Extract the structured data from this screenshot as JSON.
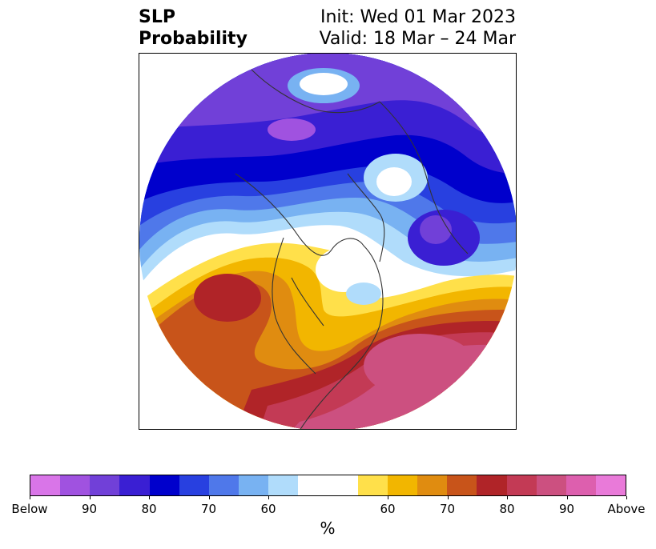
{
  "title": {
    "left_line1": "SLP",
    "left_line2": "Probability",
    "right_line1": "Init: Wed 01 Mar 2023",
    "right_line2": "Valid: 18 Mar – 24 Mar"
  },
  "map": {
    "projection": "north-polar-stereographic",
    "region": "Northern Hemisphere"
  },
  "colorbar": {
    "colors": [
      "#d975e8",
      "#a052e0",
      "#7140d8",
      "#3a1fd3",
      "#0000cc",
      "#2840e0",
      "#4f78ea",
      "#78b2f2",
      "#b0dcfb",
      "#ffffff",
      "#ffffff",
      "#ffe04a",
      "#f2b600",
      "#e08c10",
      "#c8541a",
      "#b02428",
      "#c33a55",
      "#cc5080",
      "#dd5fae",
      "#e97ad9"
    ],
    "tick_labels": [
      "Below",
      "90",
      "80",
      "70",
      "60",
      "60",
      "70",
      "80",
      "90",
      "Above"
    ],
    "unit_label": "%"
  }
}
